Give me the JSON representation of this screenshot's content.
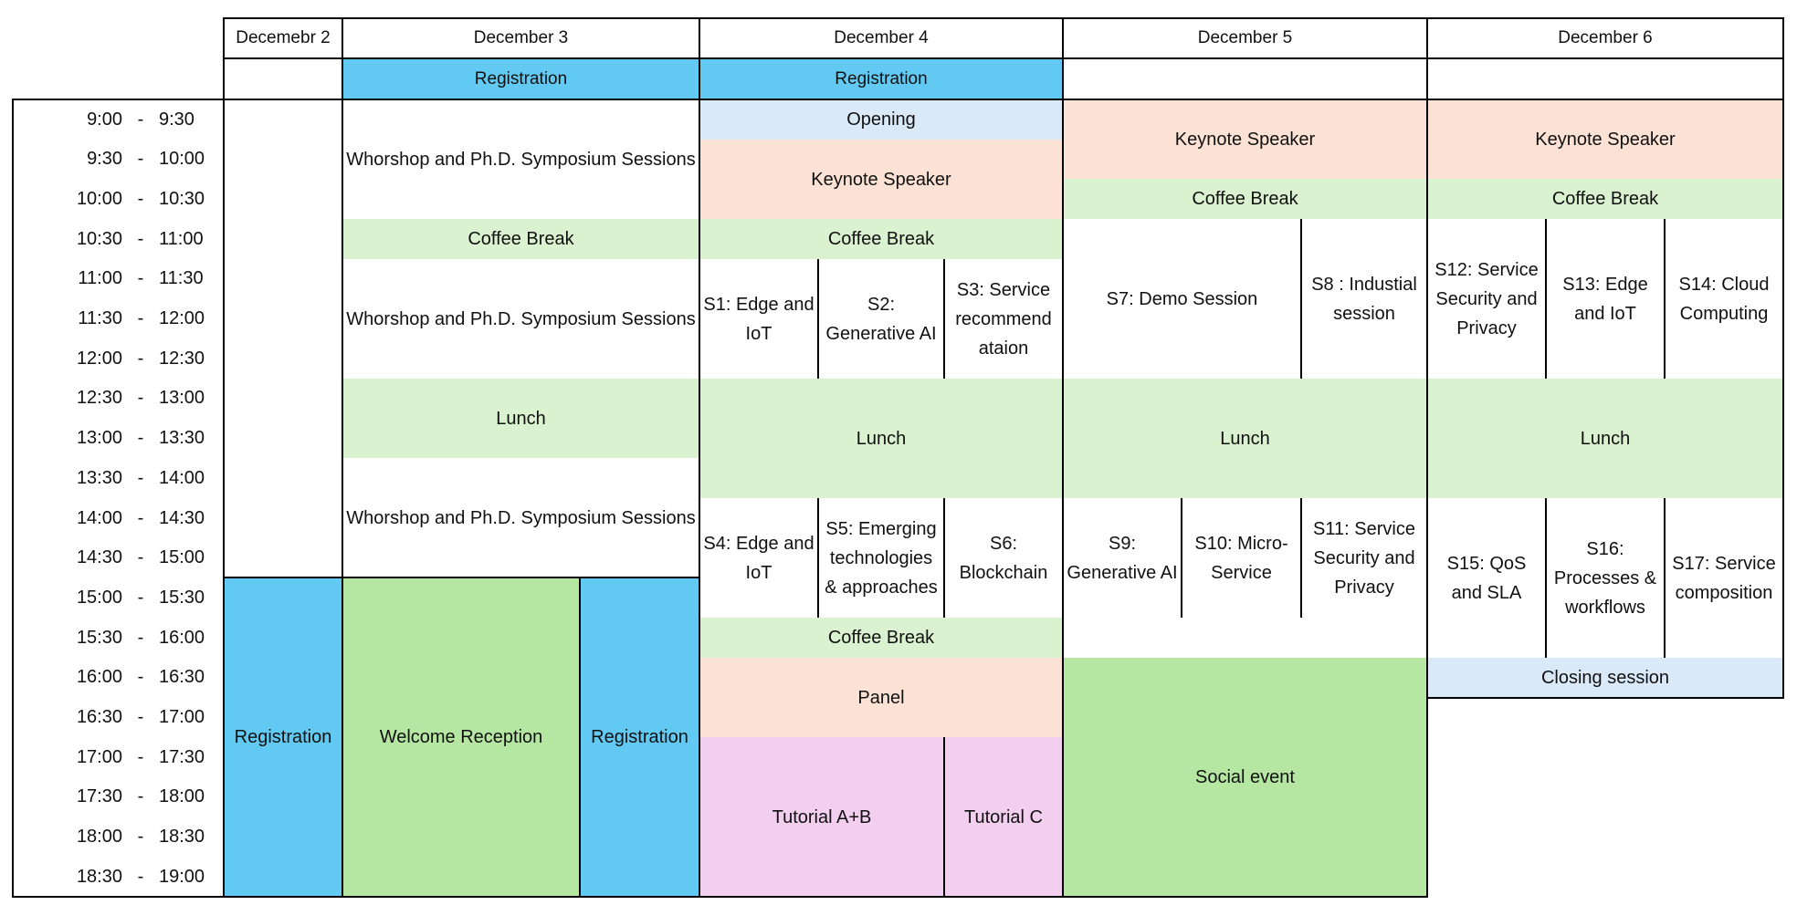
{
  "colors": {
    "registration": "#62CAF2",
    "break": "#DAF2D0",
    "social": "#B5E6A2",
    "keynote": "#FBE2D5",
    "opening": "#DAE9F8",
    "tutorial": "#F2CFEE",
    "session": "#FFFFFF"
  },
  "days": [
    {
      "label": "Decemebr 2",
      "pre_label": ""
    },
    {
      "label": "December 3",
      "pre_label": "Registration"
    },
    {
      "label": "December 4",
      "pre_label": "Registration"
    },
    {
      "label": "December 5",
      "pre_label": ""
    },
    {
      "label": "December 6",
      "pre_label": ""
    }
  ],
  "time_slots": [
    {
      "from": "9:00",
      "to": "9:30"
    },
    {
      "from": "9:30",
      "to": "10:00"
    },
    {
      "from": "10:00",
      "to": "10:30"
    },
    {
      "from": "10:30",
      "to": "11:00"
    },
    {
      "from": "11:00",
      "to": "11:30"
    },
    {
      "from": "11:30",
      "to": "12:00"
    },
    {
      "from": "12:00",
      "to": "12:30"
    },
    {
      "from": "12:30",
      "to": "13:00"
    },
    {
      "from": "13:00",
      "to": "13:30"
    },
    {
      "from": "13:30",
      "to": "14:00"
    },
    {
      "from": "14:00",
      "to": "14:30"
    },
    {
      "from": "14:30",
      "to": "15:00"
    },
    {
      "from": "15:00",
      "to": "15:30"
    },
    {
      "from": "15:30",
      "to": "16:00"
    },
    {
      "from": "16:00",
      "to": "16:30"
    },
    {
      "from": "16:30",
      "to": "17:00"
    },
    {
      "from": "17:00",
      "to": "17:30"
    },
    {
      "from": "17:30",
      "to": "18:00"
    },
    {
      "from": "18:00",
      "to": "18:30"
    },
    {
      "from": "18:30",
      "to": "19:00"
    }
  ],
  "time_separator": "-",
  "events": {
    "dec2": {
      "registration": "Registration"
    },
    "dec3": {
      "workshop1": "Whorshop and Ph.D. Symposium Sessions",
      "coffee": "Coffee Break",
      "workshop2": "Whorshop and Ph.D. Symposium Sessions",
      "lunch": "Lunch",
      "workshop3": "Whorshop and Ph.D. Symposium Sessions",
      "welcome": "Welcome Reception",
      "registration": "Registration"
    },
    "dec4": {
      "opening": "Opening",
      "keynote": "Keynote Speaker",
      "coffee1": "Coffee Break",
      "s1": "S1: Edge and IoT",
      "s2": "S2: Generative AI",
      "s3": "S3: Service recommend ataion",
      "lunch": "Lunch",
      "s4": "S4: Edge and IoT",
      "s5": "S5: Emerging technologies & approaches",
      "s6": "S6: Blockchain",
      "coffee2": "Coffee Break",
      "panel": "Panel",
      "tutorial_ab": "Tutorial A+B",
      "tutorial_c": "Tutorial C"
    },
    "dec5": {
      "keynote": "Keynote Speaker",
      "coffee": "Coffee Break",
      "s7": "S7: Demo Session",
      "s8": "S8 : Industial session",
      "lunch": "Lunch",
      "s9": "S9: Generative AI",
      "s10": "S10: Micro-Service",
      "s11": "S11: Service Security and Privacy",
      "social": "Social event"
    },
    "dec6": {
      "keynote": "Keynote Speaker",
      "coffee": "Coffee Break",
      "s12": "S12: Service Security and Privacy",
      "s13": "S13: Edge and IoT",
      "s14": "S14: Cloud Computing",
      "lunch": "Lunch",
      "s15": "S15: QoS and SLA",
      "s16": "S16: Processes & workflows",
      "s17": "S17: Service composition",
      "closing": "Closing session"
    }
  }
}
